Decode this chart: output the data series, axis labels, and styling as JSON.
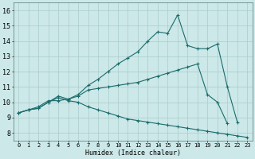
{
  "xlabel": "Humidex (Indice chaleur)",
  "ylabel": "",
  "xlim": [
    -0.5,
    23.5
  ],
  "ylim": [
    7.5,
    16.5
  ],
  "xticks": [
    0,
    1,
    2,
    3,
    4,
    5,
    6,
    7,
    8,
    9,
    10,
    11,
    12,
    13,
    14,
    15,
    16,
    17,
    18,
    19,
    20,
    21,
    22,
    23
  ],
  "yticks": [
    8,
    9,
    10,
    11,
    12,
    13,
    14,
    15,
    16
  ],
  "bg_color": "#cce8e8",
  "grid_color": "#aacccc",
  "line_color": "#1a6b6b",
  "curve1_x": [
    0,
    1,
    2,
    3,
    4,
    5,
    6,
    7,
    8,
    9,
    10,
    11,
    12,
    13,
    14,
    15,
    16,
    17,
    18,
    19,
    20,
    21,
    22
  ],
  "curve1_y": [
    9.3,
    9.5,
    9.7,
    10.1,
    10.1,
    10.2,
    10.5,
    11.1,
    11.5,
    12.0,
    12.5,
    12.9,
    13.3,
    14.0,
    14.6,
    14.5,
    15.7,
    13.7,
    13.5,
    13.5,
    13.8,
    11.0,
    8.7
  ],
  "curve2_x": [
    0,
    1,
    2,
    3,
    4,
    5,
    6,
    7,
    8,
    9,
    10,
    11,
    12,
    13,
    14,
    15,
    16,
    17,
    18,
    19,
    20,
    21
  ],
  "curve2_y": [
    9.3,
    9.5,
    9.6,
    10.0,
    10.4,
    10.2,
    10.4,
    10.8,
    10.9,
    11.0,
    11.1,
    11.2,
    11.3,
    11.5,
    11.7,
    11.9,
    12.1,
    12.3,
    12.5,
    10.5,
    10.0,
    8.6
  ],
  "curve3_x": [
    0,
    1,
    2,
    3,
    4,
    5,
    6,
    7,
    8,
    9,
    10,
    11,
    12,
    13,
    14,
    15,
    16,
    17,
    18,
    19,
    20,
    21,
    22,
    23
  ],
  "curve3_y": [
    9.3,
    9.5,
    9.6,
    10.0,
    10.3,
    10.1,
    10.0,
    9.7,
    9.5,
    9.3,
    9.1,
    8.9,
    8.8,
    8.7,
    8.6,
    8.5,
    8.4,
    8.3,
    8.2,
    8.1,
    8.0,
    7.9,
    7.8,
    7.7
  ]
}
